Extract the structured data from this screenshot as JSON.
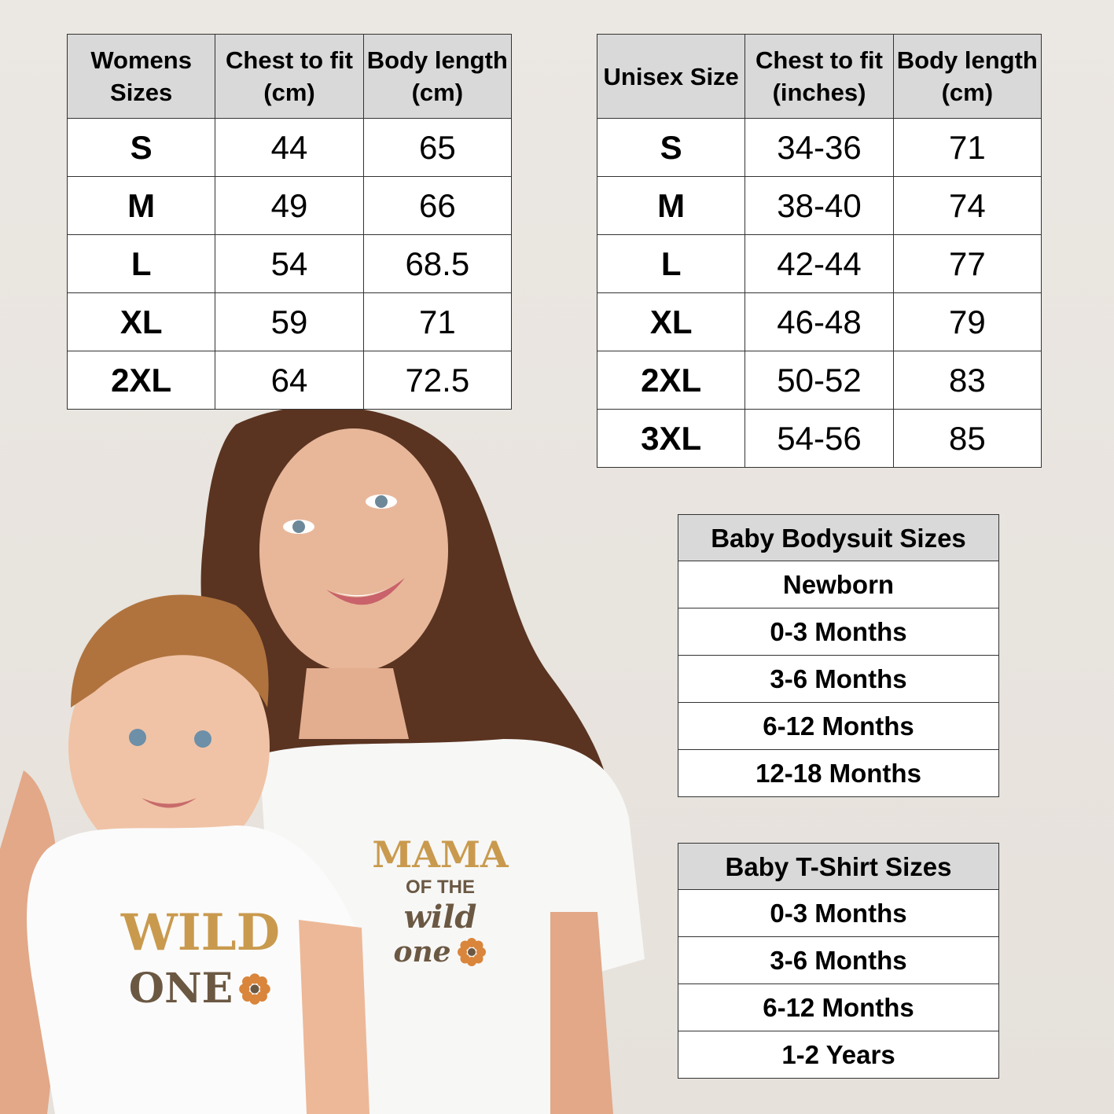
{
  "womens_table": {
    "headers": [
      "Womens Sizes",
      "Chest to fit (cm)",
      "Body length (cm)"
    ],
    "rows": [
      [
        "S",
        "44",
        "65"
      ],
      [
        "M",
        "49",
        "66"
      ],
      [
        "L",
        "54",
        "68.5"
      ],
      [
        "XL",
        "59",
        "71"
      ],
      [
        "2XL",
        "64",
        "72.5"
      ]
    ]
  },
  "unisex_table": {
    "headers": [
      "Unisex Size",
      "Chest to fit (inches)",
      "Body length (cm)"
    ],
    "rows": [
      [
        "S",
        "34-36",
        "71"
      ],
      [
        "M",
        "38-40",
        "74"
      ],
      [
        "L",
        "42-44",
        "77"
      ],
      [
        "XL",
        "46-48",
        "79"
      ],
      [
        "2XL",
        "50-52",
        "83"
      ],
      [
        "3XL",
        "54-56",
        "85"
      ]
    ]
  },
  "baby_bodysuit_table": {
    "header": "Baby Bodysuit Sizes",
    "rows": [
      "Newborn",
      "0-3 Months",
      "3-6 Months",
      "6-12 Months",
      "12-18 Months"
    ]
  },
  "baby_tshirt_table": {
    "header": "Baby T-Shirt Sizes",
    "rows": [
      "0-3 Months",
      "3-6 Months",
      "6-12 Months",
      "1-2 Years"
    ]
  },
  "photo": {
    "mama_print": {
      "line1": "MAMA",
      "line2": "OF THE",
      "line3": "wild",
      "line4": "one"
    },
    "baby_print": {
      "line1": "WILD",
      "line2": "ONE"
    },
    "colors": {
      "gold": "#c99a4e",
      "brown": "#6b5843",
      "flower": "#d9853b",
      "background": "#e9e5e0",
      "header": "#d9d9d9"
    }
  }
}
